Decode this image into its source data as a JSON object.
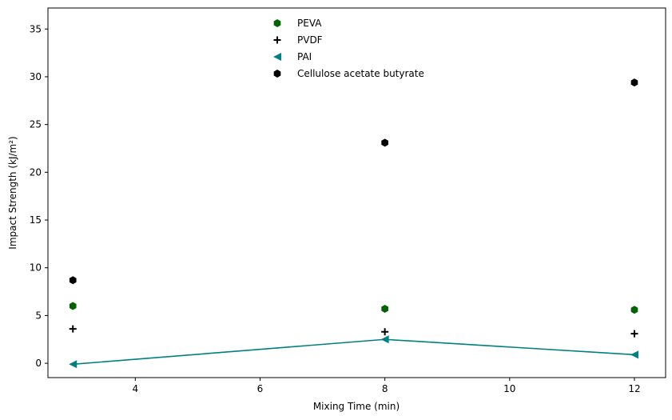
{
  "chart_data": {
    "type": "scatter",
    "xlabel": "Mixing Time (min)",
    "ylabel": "Impact Strength (kJ/m²)",
    "xlim": [
      2.6,
      12.5
    ],
    "ylim": [
      -1.5,
      37.2
    ],
    "xticks": [
      4,
      6,
      8,
      10,
      12
    ],
    "yticks": [
      0,
      5,
      10,
      15,
      20,
      25,
      30,
      35
    ],
    "grid": false,
    "legend_position": "upper center",
    "series": [
      {
        "name": "PEVA",
        "marker": "hexagon",
        "color": "#006400",
        "line": false,
        "x": [
          3,
          8,
          12
        ],
        "y": [
          6.0,
          5.7,
          5.6
        ]
      },
      {
        "name": "PVDF",
        "marker": "plus",
        "color": "#000000",
        "line": false,
        "x": [
          3,
          8,
          12
        ],
        "y": [
          3.6,
          3.3,
          3.1
        ]
      },
      {
        "name": "PAI",
        "marker": "triangle-left",
        "color": "#008080",
        "line": true,
        "x": [
          3,
          8,
          12
        ],
        "y": [
          -0.1,
          2.5,
          0.9
        ]
      },
      {
        "name": "Cellulose acetate butyrate",
        "marker": "hexagon",
        "color": "#000000",
        "line": false,
        "x": [
          3,
          8,
          12
        ],
        "y": [
          8.7,
          23.1,
          29.4
        ]
      }
    ]
  }
}
